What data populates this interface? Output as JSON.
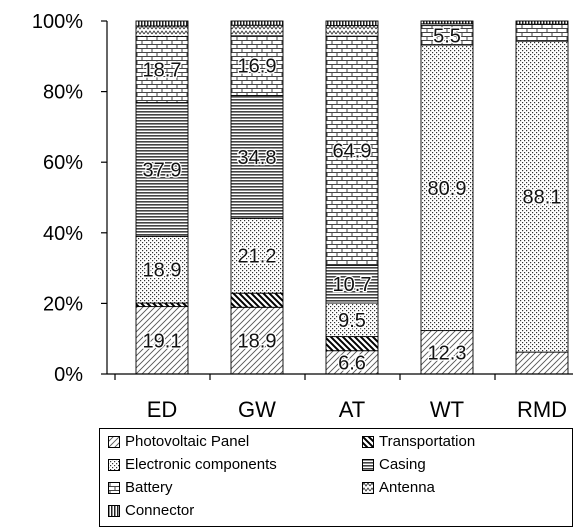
{
  "chart_data": {
    "type": "bar",
    "stacked": true,
    "normalized": true,
    "categories": [
      "ED",
      "GW",
      "AT",
      "WT",
      "RMD"
    ],
    "yticks": [
      "0%",
      "20%",
      "40%",
      "60%",
      "80%",
      "100%"
    ],
    "ylim": [
      0,
      100
    ],
    "legend_position": "bottom",
    "series": [
      {
        "name": "Photovoltaic Panel",
        "pattern": "diagonal",
        "values": [
          19.1,
          18.9,
          6.6,
          12.3,
          6.2
        ]
      },
      {
        "name": "Transportation",
        "pattern": "bold-diagonal",
        "values": [
          1.0,
          4.0,
          4.0,
          0,
          0
        ]
      },
      {
        "name": "Electronic components",
        "pattern": "dots",
        "values": [
          18.9,
          21.2,
          9.5,
          80.9,
          88.1
        ]
      },
      {
        "name": "Casing",
        "pattern": "horizontal",
        "values": [
          37.9,
          34.8,
          10.7,
          0,
          0
        ]
      },
      {
        "name": "Battery",
        "pattern": "brick",
        "values": [
          18.7,
          16.9,
          64.9,
          5.5,
          4.8
        ]
      },
      {
        "name": "Antenna",
        "pattern": "zigzag",
        "values": [
          3.0,
          3.0,
          3.0,
          0.5,
          0
        ]
      },
      {
        "name": "Connector",
        "pattern": "vertical",
        "values": [
          1.4,
          1.2,
          1.3,
          0.8,
          0.9
        ]
      }
    ],
    "data_labels": [
      {
        "category": "ED",
        "series": "Photovoltaic Panel",
        "text": "19.1"
      },
      {
        "category": "ED",
        "series": "Electronic components",
        "text": "18.9"
      },
      {
        "category": "ED",
        "series": "Casing",
        "text": "37.9"
      },
      {
        "category": "ED",
        "series": "Battery",
        "text": "18.7"
      },
      {
        "category": "GW",
        "series": "Photovoltaic Panel",
        "text": "18.9"
      },
      {
        "category": "GW",
        "series": "Electronic components",
        "text": "21.2"
      },
      {
        "category": "GW",
        "series": "Casing",
        "text": "34.8"
      },
      {
        "category": "GW",
        "series": "Battery",
        "text": "16.9"
      },
      {
        "category": "AT",
        "series": "Photovoltaic Panel",
        "text": "6.6"
      },
      {
        "category": "AT",
        "series": "Electronic components",
        "text": "9.5"
      },
      {
        "category": "AT",
        "series": "Casing",
        "text": "10.7"
      },
      {
        "category": "AT",
        "series": "Battery",
        "text": "64.9"
      },
      {
        "category": "WT",
        "series": "Photovoltaic Panel",
        "text": "12.3"
      },
      {
        "category": "WT",
        "series": "Electronic components",
        "text": "80.9"
      },
      {
        "category": "WT",
        "series": "Battery",
        "text": "5.5"
      },
      {
        "category": "RMD",
        "series": "Electronic components",
        "text": "88.1"
      }
    ]
  }
}
